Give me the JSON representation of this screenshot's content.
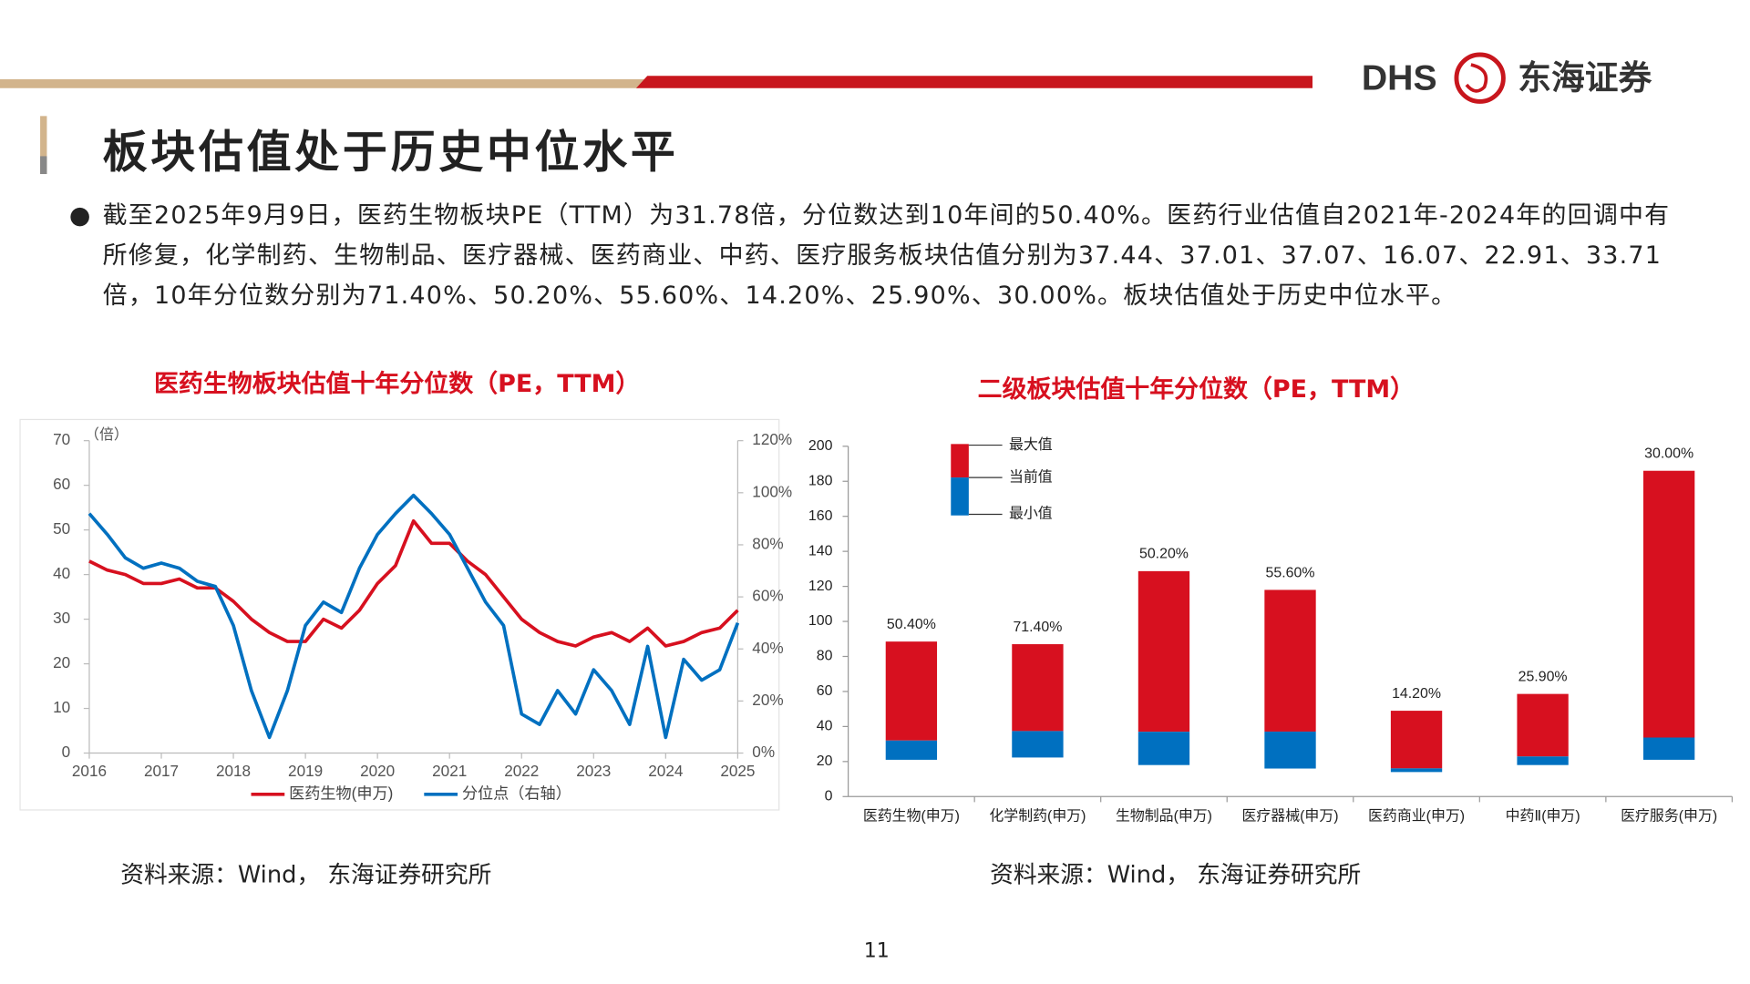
{
  "header": {
    "logo_text": "DHS",
    "company": "东海证券",
    "title": "板块估值处于历史中位水平"
  },
  "bullet": "截至2025年9月9日，医药生物板块PE（TTM）为31.78倍，分位数达到10年间的50.40%。医药行业估值自2021年-2024年的回调中有所修复，化学制药、生物制品、医疗器械、医药商业、中药、医疗服务板块估值分别为37.44、37.01、37.07、16.07、22.91、33.71倍，10年分位数分别为71.40%、50.20%、55.60%、14.20%、25.90%、30.00%。板块估值处于历史中位水平。",
  "sources": [
    "资料来源：Wind， 东海证券研究所",
    "资料来源：Wind， 东海证券研究所"
  ],
  "page_number": "11",
  "chart_data": [
    {
      "type": "line",
      "title": "医药生物板块估值十年分位数（PE，TTM）",
      "y_unit_label": "（倍）",
      "x": [
        2016,
        2016.25,
        2016.5,
        2016.75,
        2017,
        2017.25,
        2017.5,
        2017.75,
        2018,
        2018.25,
        2018.5,
        2018.75,
        2019,
        2019.25,
        2019.5,
        2019.75,
        2020,
        2020.25,
        2020.5,
        2020.75,
        2021,
        2021.25,
        2021.5,
        2021.75,
        2022,
        2022.25,
        2022.5,
        2022.75,
        2023,
        2023.25,
        2023.5,
        2023.75,
        2024,
        2024.25,
        2024.5,
        2024.75,
        2025
      ],
      "xlim": [
        2016,
        2025
      ],
      "xticks": [
        2016,
        2017,
        2018,
        2019,
        2020,
        2021,
        2022,
        2023,
        2024,
        2025
      ],
      "ylim": [
        0,
        70
      ],
      "yticks": [
        0,
        10,
        20,
        30,
        40,
        50,
        60,
        70
      ],
      "y2lim": [
        0,
        120
      ],
      "y2ticks": [
        {
          "value": 0,
          "label": "0%"
        },
        {
          "value": 20,
          "label": "20%"
        },
        {
          "value": 40,
          "label": "40%"
        },
        {
          "value": 60,
          "label": "60%"
        },
        {
          "value": 80,
          "label": "80%"
        },
        {
          "value": 100,
          "label": "100%"
        },
        {
          "value": 120,
          "label": "120%"
        }
      ],
      "series": [
        {
          "name": "医药生物(申万)",
          "color": "#d7101f",
          "values": [
            43,
            41,
            40,
            38,
            38,
            39,
            37,
            37,
            34,
            30,
            27,
            25,
            25,
            30,
            28,
            32,
            38,
            42,
            52,
            47,
            47,
            43,
            40,
            35,
            30,
            27,
            25,
            24,
            26,
            27,
            25,
            28,
            24,
            25,
            27,
            28,
            32
          ]
        },
        {
          "name": "分位点（右轴）",
          "color": "#0070c0",
          "axis": "y2",
          "values": [
            92,
            84,
            75,
            71,
            73,
            71,
            66,
            64,
            49,
            24,
            6,
            24,
            49,
            58,
            54,
            71,
            84,
            92,
            99,
            92,
            84,
            71,
            58,
            49,
            15,
            11,
            24,
            15,
            32,
            24,
            11,
            41,
            6,
            36,
            28,
            32,
            50
          ]
        }
      ]
    },
    {
      "type": "floating_bar",
      "title": "二级板块估值十年分位数（PE，TTM）",
      "categories": [
        "医药生物(申万)",
        "化学制药(申万)",
        "生物制品(申万)",
        "医疗器械(申万)",
        "医药商业(申万)",
        "中药Ⅱ(申万)",
        "医疗服务(申万)"
      ],
      "ylim": [
        0,
        200
      ],
      "yticks": [
        0,
        20,
        40,
        60,
        80,
        100,
        120,
        140,
        160,
        180,
        200
      ],
      "series": [
        {
          "name": "最大值",
          "color": "#d7101f",
          "values": [
            88.5,
            87,
            128.7,
            118,
            49,
            58.6,
            186
          ]
        },
        {
          "name": "当前值",
          "color": "#0070c0",
          "values": [
            32,
            37.4,
            37,
            37.1,
            16.1,
            22.9,
            33.7
          ]
        },
        {
          "name": "最小值",
          "values": [
            21,
            22.3,
            18,
            16,
            14,
            18,
            21
          ]
        }
      ],
      "data_labels": {
        "values": [
          50.4,
          71.4,
          50.2,
          55.6,
          14.2,
          25.9,
          30
        ],
        "value_labels": [
          "50.40%",
          "71.40%",
          "50.20%",
          "55.60%",
          "14.20%",
          "25.90%",
          "30.00%"
        ]
      }
    }
  ]
}
